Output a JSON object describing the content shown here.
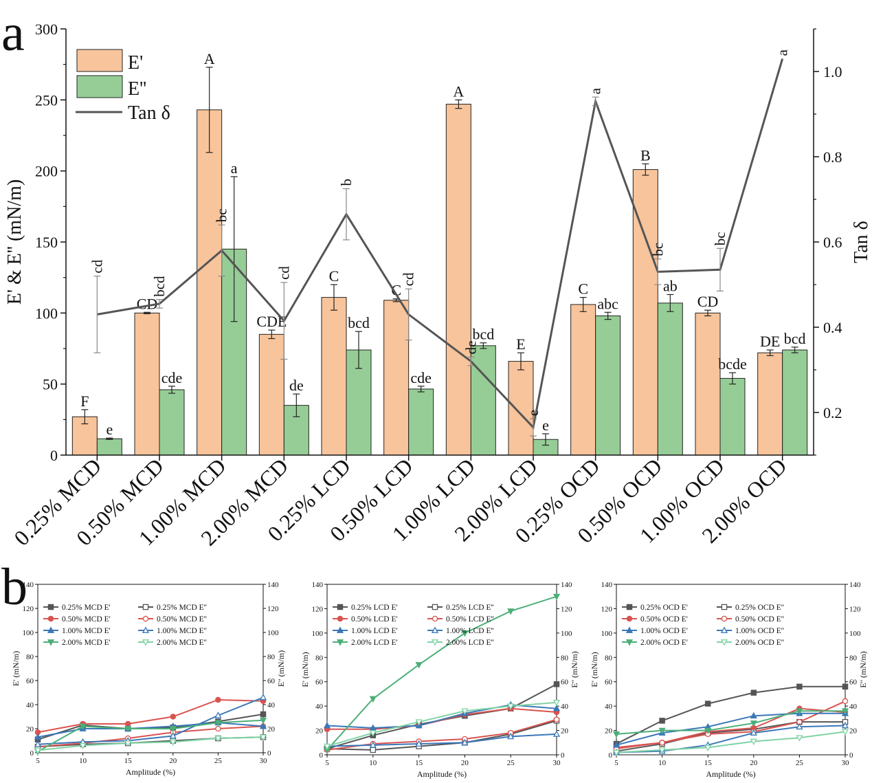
{
  "panel_a_label": "a",
  "panel_b_label": "b",
  "colors": {
    "e_prime": "#f8c49b",
    "e_double": "#96cd96",
    "tan": "#555555",
    "bar_edge": "#222222"
  },
  "chart_data": [
    {
      "id": "a",
      "type": "bar",
      "ylabel": "E' & E'' (mN/m)",
      "y2label": "Tan δ",
      "ylim": [
        0,
        300
      ],
      "y2lim": [
        0.1,
        1.1
      ],
      "yticks": [
        "0",
        "50",
        "100",
        "150",
        "200",
        "250",
        "300"
      ],
      "y2ticks": [
        "0.2",
        "0.4",
        "0.6",
        "0.8",
        "1.0"
      ],
      "legend": [
        "E'",
        "E''",
        "Tan δ"
      ],
      "legend_position": "top-left",
      "categories": [
        "0.25% MCD",
        "0.50% MCD",
        "1.00% MCD",
        "2.00% MCD",
        "0.25% LCD",
        "0.50% LCD",
        "1.00% LCD",
        "2.00% LCD",
        "0.25% OCD",
        "0.50% OCD",
        "1.00% OCD",
        "2.00% OCD"
      ],
      "series": [
        {
          "name": "E'",
          "values": [
            27,
            100,
            243,
            85,
            111,
            109,
            247,
            66,
            106,
            201,
            100,
            72
          ],
          "errors": [
            5,
            0.5,
            30,
            3,
            9,
            1,
            3,
            6,
            5,
            4,
            2,
            2
          ],
          "letters": [
            "F",
            "CD",
            "A",
            "CDE",
            "C",
            "C",
            "A",
            "E",
            "C",
            "B",
            "CD",
            "DE"
          ]
        },
        {
          "name": "E''",
          "values": [
            11.5,
            46,
            145,
            35,
            74,
            46.5,
            77,
            11,
            98,
            107,
            54,
            74
          ],
          "errors": [
            0.5,
            2.5,
            51,
            8,
            13,
            2,
            2,
            4,
            2.5,
            6,
            4,
            2
          ],
          "letters": [
            "e",
            "cde",
            "a",
            "de",
            "bcd",
            "cde",
            "bcd",
            "e",
            "abc",
            "ab",
            "bcde",
            "bcd"
          ]
        },
        {
          "name": "Tan δ",
          "values": [
            0.43,
            0.455,
            0.58,
            0.415,
            0.665,
            0.43,
            0.32,
            0.165,
            0.93,
            0.53,
            0.535,
            1.03
          ],
          "errors": [
            0.09,
            0.01,
            0.06,
            0.09,
            0.06,
            0.06,
            0.01,
            0.02,
            0.01,
            0.03,
            0.05,
            0.0
          ],
          "letters": [
            "cd",
            "bcd",
            "bc",
            "cd",
            "b",
            "cd",
            "de",
            "e",
            "a",
            "bc",
            "bc",
            "a"
          ]
        }
      ]
    },
    {
      "id": "b1",
      "type": "line",
      "xlabel": "Amplitude (%)",
      "ylabel": "E' (mN/m)",
      "y2label": "E'' (mN/m)",
      "x": [
        5,
        10,
        15,
        20,
        25,
        30
      ],
      "xlim": [
        5,
        30
      ],
      "ylim": [
        0,
        140
      ],
      "xticks": [
        "5",
        "10",
        "15",
        "20",
        "25",
        "30"
      ],
      "yticks": [
        "0",
        "20",
        "40",
        "60",
        "80",
        "100",
        "120",
        "140"
      ],
      "legend_position": "top-left",
      "series": [
        {
          "name": "0.25% MCD E'",
          "values": [
            11,
            23,
            20,
            21,
            26,
            32
          ],
          "marker": "square",
          "filled": true,
          "color": "#555555"
        },
        {
          "name": "0.25% MCD E''",
          "values": [
            5,
            7,
            8,
            10,
            12,
            13
          ],
          "marker": "square",
          "filled": false,
          "color": "#555555"
        },
        {
          "name": "0.50% MCD E'",
          "values": [
            17,
            24,
            24,
            30,
            44,
            43
          ],
          "marker": "circle",
          "filled": true,
          "color": "#d9534f"
        },
        {
          "name": "0.50% MCD E''",
          "values": [
            5,
            8,
            12,
            17,
            20,
            22
          ],
          "marker": "circle",
          "filled": false,
          "color": "#d9534f"
        },
        {
          "name": "1.00% MCD E'",
          "values": [
            13,
            20,
            20,
            22,
            25,
            22
          ],
          "marker": "triangle-up",
          "filled": true,
          "color": "#3a78b8"
        },
        {
          "name": "1.00% MCD E''",
          "values": [
            7,
            9,
            10,
            14,
            31,
            46
          ],
          "marker": "triangle-up",
          "filled": false,
          "color": "#3a78b8"
        },
        {
          "name": "2.00% MCD E'",
          "values": [
            1,
            22,
            20,
            20,
            25,
            27
          ],
          "marker": "triangle-down",
          "filled": true,
          "color": "#4caf78"
        },
        {
          "name": "2.00% MCD E''",
          "values": [
            2,
            6,
            8,
            9,
            12,
            13
          ],
          "marker": "triangle-down",
          "filled": false,
          "color": "#7fd3a5"
        }
      ]
    },
    {
      "id": "b2",
      "type": "line",
      "xlabel": "Amplitude (%)",
      "ylabel": "E' (mN/m)",
      "y2label": "E'' (mN/m)",
      "x": [
        5,
        10,
        15,
        20,
        25,
        30
      ],
      "xlim": [
        5,
        30
      ],
      "ylim": [
        0,
        140
      ],
      "xticks": [
        "5",
        "10",
        "15",
        "20",
        "25",
        "30"
      ],
      "yticks": [
        "0",
        "20",
        "40",
        "60",
        "80",
        "100",
        "120",
        "140"
      ],
      "legend_position": "top-left",
      "series": [
        {
          "name": "0.25% LCD E'",
          "values": [
            5,
            16,
            25,
            32,
            38,
            58
          ],
          "marker": "square",
          "filled": true,
          "color": "#555555"
        },
        {
          "name": "0.25% LCD E''",
          "values": [
            5,
            4,
            7,
            10,
            17,
            28
          ],
          "marker": "square",
          "filled": false,
          "color": "#555555"
        },
        {
          "name": "0.50% LCD E'",
          "values": [
            21,
            21,
            24,
            33,
            38,
            35
          ],
          "marker": "circle",
          "filled": true,
          "color": "#d9534f"
        },
        {
          "name": "0.50% LCD E''",
          "values": [
            4,
            9,
            11,
            13,
            18,
            29
          ],
          "marker": "circle",
          "filled": false,
          "color": "#d9534f"
        },
        {
          "name": "1.00% LCD E'",
          "values": [
            24,
            22,
            24,
            34,
            41,
            38
          ],
          "marker": "triangle-up",
          "filled": true,
          "color": "#3a78b8"
        },
        {
          "name": "1.00% LCD E''",
          "values": [
            7,
            8,
            9,
            10,
            15,
            17
          ],
          "marker": "triangle-up",
          "filled": false,
          "color": "#3a78b8"
        },
        {
          "name": "2.00% LCD E'",
          "values": [
            4,
            46,
            74,
            100,
            118,
            130
          ],
          "marker": "triangle-down",
          "filled": true,
          "color": "#4caf78"
        },
        {
          "name": "2.00% LCD E''",
          "values": [
            7,
            18,
            27,
            36,
            40,
            43
          ],
          "marker": "triangle-down",
          "filled": false,
          "color": "#7fd3a5"
        }
      ]
    },
    {
      "id": "b3",
      "type": "line",
      "xlabel": "Amplitude (%)",
      "ylabel": "E' (mN/m)",
      "y2label": "E'' (mN/m)",
      "x": [
        5,
        10,
        15,
        20,
        25,
        30
      ],
      "xlim": [
        5,
        30
      ],
      "ylim": [
        0,
        140
      ],
      "xticks": [
        "5",
        "10",
        "15",
        "20",
        "25",
        "30"
      ],
      "yticks": [
        "0",
        "20",
        "40",
        "60",
        "80",
        "100",
        "120",
        "140"
      ],
      "legend_position": "top-left",
      "series": [
        {
          "name": "0.25% OCD E'",
          "values": [
            9,
            28,
            42,
            51,
            56,
            56
          ],
          "marker": "square",
          "filled": true,
          "color": "#555555"
        },
        {
          "name": "0.25% OCD E''",
          "values": [
            3,
            9,
            18,
            21,
            27,
            27
          ],
          "marker": "square",
          "filled": false,
          "color": "#555555"
        },
        {
          "name": "0.50% OCD E'",
          "values": [
            6,
            10,
            19,
            22,
            38,
            35
          ],
          "marker": "circle",
          "filled": true,
          "color": "#d9534f"
        },
        {
          "name": "0.50% OCD E''",
          "values": [
            5,
            10,
            17,
            19,
            27,
            44
          ],
          "marker": "circle",
          "filled": false,
          "color": "#d9534f"
        },
        {
          "name": "1.00% OCD E'",
          "values": [
            8,
            18,
            23,
            32,
            34,
            34
          ],
          "marker": "triangle-up",
          "filled": true,
          "color": "#3a78b8"
        },
        {
          "name": "1.00% OCD E''",
          "values": [
            2,
            3,
            8,
            18,
            23,
            24
          ],
          "marker": "triangle-up",
          "filled": false,
          "color": "#3a78b8"
        },
        {
          "name": "2.00% OCD E'",
          "values": [
            17,
            20,
            20,
            26,
            36,
            36
          ],
          "marker": "triangle-down",
          "filled": true,
          "color": "#4caf78"
        },
        {
          "name": "2.00% OCD E''",
          "values": [
            2,
            4,
            6,
            11,
            14,
            19
          ],
          "marker": "triangle-down",
          "filled": false,
          "color": "#7fd3a5"
        }
      ]
    }
  ]
}
